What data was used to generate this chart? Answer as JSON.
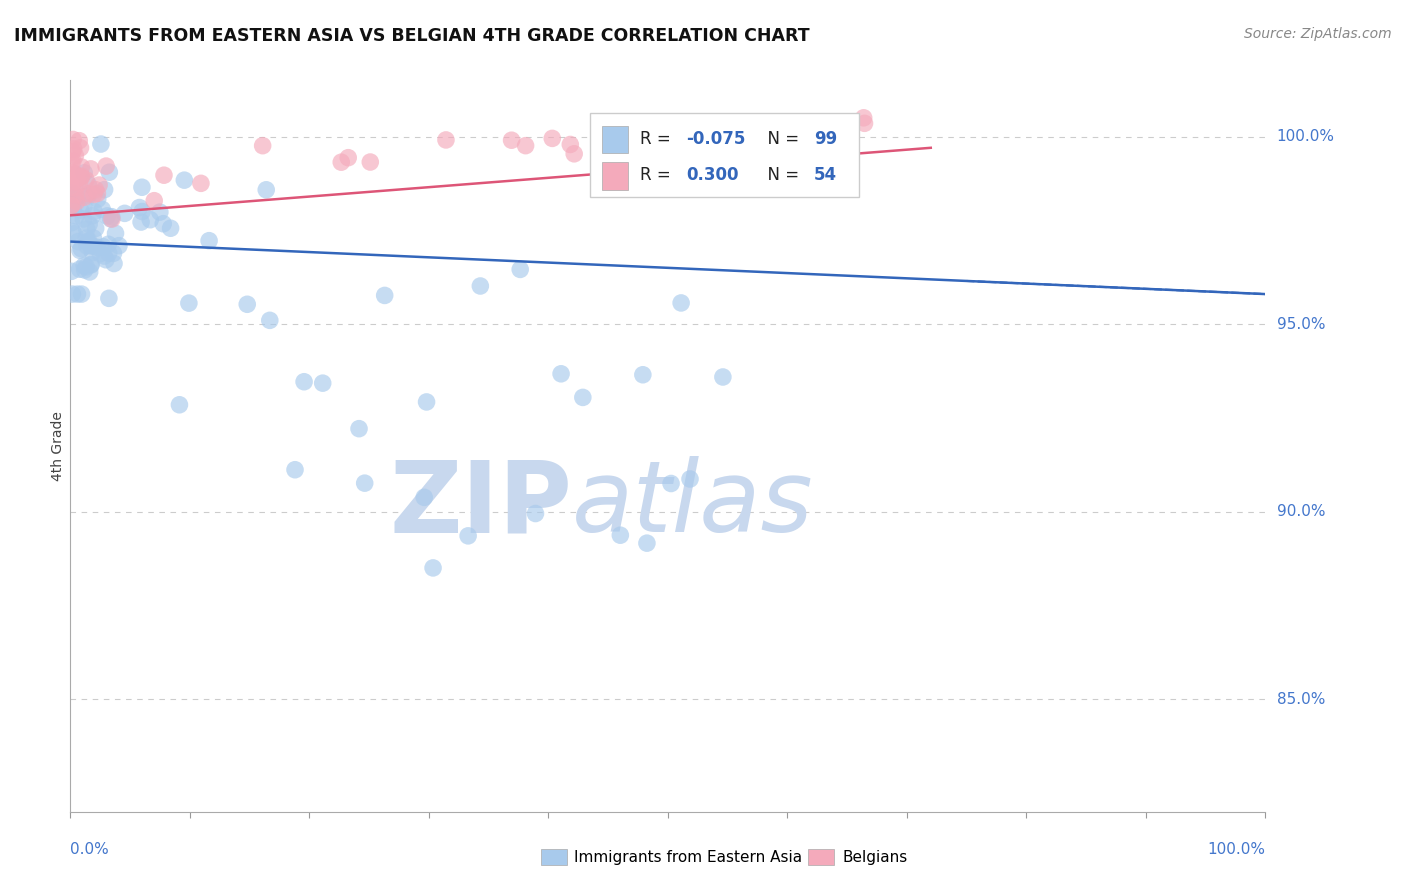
{
  "title": "IMMIGRANTS FROM EASTERN ASIA VS BELGIAN 4TH GRADE CORRELATION CHART",
  "source": "Source: ZipAtlas.com",
  "ylabel": "4th Grade",
  "legend_blue": "Immigrants from Eastern Asia",
  "legend_pink": "Belgians",
  "R_blue": -0.075,
  "N_blue": 99,
  "R_pink": 0.3,
  "N_pink": 54,
  "blue_color": "#A8CAEC",
  "pink_color": "#F4AABB",
  "blue_line_color": "#3366BB",
  "pink_line_color": "#DD5577",
  "grid_color": "#CCCCCC",
  "watermark_color": "#C8D8EE",
  "ytick_values": [
    0.85,
    0.9,
    0.95,
    1.0
  ],
  "ytick_labels": [
    "85.0%",
    "90.0%",
    "95.0%",
    "100.0%"
  ],
  "ylim_min": 0.82,
  "ylim_max": 1.015,
  "xlim_min": 0.0,
  "xlim_max": 1.0
}
